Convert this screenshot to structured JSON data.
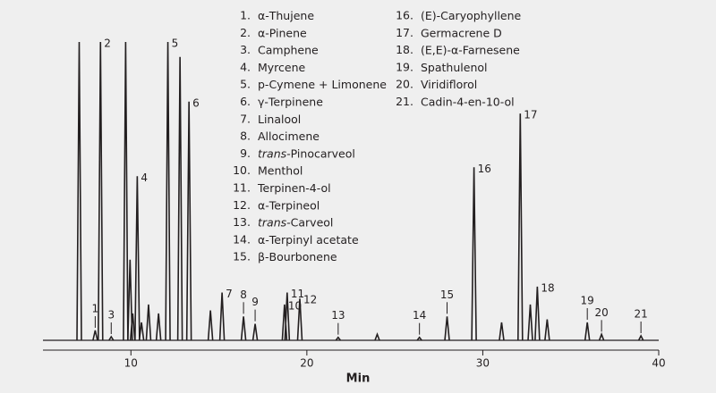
{
  "chart_data": {
    "type": "chromatogram",
    "x_label": "Min",
    "xlim": [
      5,
      40
    ],
    "xticks": [
      10,
      20,
      30,
      40
    ],
    "ylim": [
      0,
      100
    ],
    "color": "#231f20",
    "peaks": [
      {
        "label": null,
        "time": 7.06,
        "height": 100
      },
      {
        "label": "1",
        "time": 7.97,
        "height": 3.3
      },
      {
        "label": "2",
        "time": 8.27,
        "height": 100
      },
      {
        "label": "3",
        "time": 8.88,
        "height": 1.2
      },
      {
        "label": null,
        "time": 9.7,
        "height": 100
      },
      {
        "label": null,
        "time": 9.95,
        "height": 27
      },
      {
        "label": null,
        "time": 10.1,
        "height": 9
      },
      {
        "label": "4",
        "time": 10.36,
        "height": 55
      },
      {
        "label": null,
        "time": 10.6,
        "height": 6
      },
      {
        "label": null,
        "time": 11.0,
        "height": 12
      },
      {
        "label": null,
        "time": 11.57,
        "height": 9
      },
      {
        "label": "5",
        "time": 12.1,
        "height": 100
      },
      {
        "label": null,
        "time": 12.79,
        "height": 95
      },
      {
        "label": "6",
        "time": 13.3,
        "height": 80
      },
      {
        "label": null,
        "time": 14.52,
        "height": 10
      },
      {
        "label": "7",
        "time": 15.18,
        "height": 16
      },
      {
        "label": "8",
        "time": 16.4,
        "height": 8
      },
      {
        "label": "9",
        "time": 17.06,
        "height": 5.5
      },
      {
        "label": "10",
        "time": 18.73,
        "height": 12
      },
      {
        "label": "11",
        "time": 18.88,
        "height": 16
      },
      {
        "label": "12",
        "time": 19.6,
        "height": 14
      },
      {
        "label": "13",
        "time": 21.78,
        "height": 1
      },
      {
        "label": null,
        "time": 24.0,
        "height": 2
      },
      {
        "label": "14",
        "time": 26.4,
        "height": 1
      },
      {
        "label": "15",
        "time": 27.97,
        "height": 8
      },
      {
        "label": "16",
        "time": 29.5,
        "height": 58
      },
      {
        "label": null,
        "time": 31.07,
        "height": 6
      },
      {
        "label": "17",
        "time": 32.13,
        "height": 76
      },
      {
        "label": null,
        "time": 32.7,
        "height": 12
      },
      {
        "label": "18",
        "time": 33.1,
        "height": 18
      },
      {
        "label": null,
        "time": 33.66,
        "height": 7
      },
      {
        "label": "19",
        "time": 35.94,
        "height": 6
      },
      {
        "label": "20",
        "time": 36.75,
        "height": 2
      },
      {
        "label": "21",
        "time": 38.99,
        "height": 1.5
      }
    ],
    "legend": [
      {
        "num": "1.",
        "text": "α-Thujene"
      },
      {
        "num": "2.",
        "text": "α-Pinene"
      },
      {
        "num": "3.",
        "text": "Camphene"
      },
      {
        "num": "4.",
        "text": "Myrcene"
      },
      {
        "num": "5.",
        "text": "p-Cymene + Limonene"
      },
      {
        "num": "6.",
        "text": "γ-Terpinene"
      },
      {
        "num": "7.",
        "text": "Linalool"
      },
      {
        "num": "8.",
        "text": "Allocimene"
      },
      {
        "num": "9.",
        "italic": "trans-",
        "text": "Pinocarveol"
      },
      {
        "num": "10.",
        "text": "Menthol"
      },
      {
        "num": "11.",
        "text": "Terpinen-4-ol"
      },
      {
        "num": "12.",
        "text": "α-Terpineol"
      },
      {
        "num": "13.",
        "italic": "trans-",
        "text": "Carveol"
      },
      {
        "num": "14.",
        "text": "α-Terpinyl acetate"
      },
      {
        "num": "15.",
        "text": "β-Bourbonene"
      },
      {
        "num": "16.",
        "text": "(E)-Caryophyllene"
      },
      {
        "num": "17.",
        "text": "Germacrene D"
      },
      {
        "num": "18.",
        "text": "(E,E)-α-Farnesene"
      },
      {
        "num": "19.",
        "text": "Spathulenol"
      },
      {
        "num": "20.",
        "text": "Viridiflorol"
      },
      {
        "num": "21.",
        "text": "Cadin-4-en-10-ol"
      }
    ]
  }
}
